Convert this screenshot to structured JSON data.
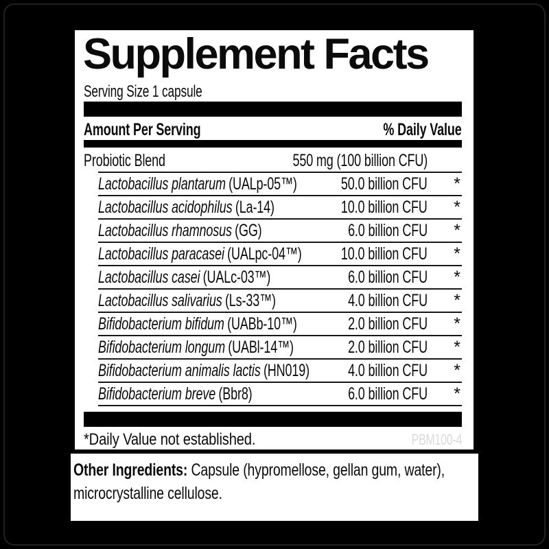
{
  "label": {
    "title": "Supplement Facts",
    "serving_size": "Serving Size 1 capsule",
    "header": {
      "amount_col": "Amount Per Serving",
      "dv_col": "% Daily Value"
    },
    "blend": {
      "name": "Probiotic Blend",
      "amount": "550 mg (100 billion CFU)",
      "dv": ""
    },
    "ingredients": [
      {
        "name": "Lactobacillus plantarum",
        "strain": "(UALp-05™)",
        "amount": "50.0 billion CFU",
        "dv": "*"
      },
      {
        "name": "Lactobacillus acidophilus",
        "strain": "(La-14)",
        "amount": "10.0 billion CFU",
        "dv": "*"
      },
      {
        "name": "Lactobacillus rhamnosus",
        "strain": "(GG)",
        "amount": "6.0 billion CFU",
        "dv": "*"
      },
      {
        "name": "Lactobacillus paracasei",
        "strain": "(UALpc-04™)",
        "amount": "10.0 billion CFU",
        "dv": "*"
      },
      {
        "name": "Lactobacillus casei",
        "strain": "(UALc-03™)",
        "amount": "6.0 billion CFU",
        "dv": "*"
      },
      {
        "name": "Lactobacillus salivarius",
        "strain": "(Ls-33™)",
        "amount": "4.0 billion CFU",
        "dv": "*"
      },
      {
        "name": "Bifidobacterium bifidum",
        "strain": "(UABb-10™)",
        "amount": "2.0 billion CFU",
        "dv": "*"
      },
      {
        "name": "Bifidobacterium longum",
        "strain": "(UABl-14™)",
        "amount": "2.0 billion CFU",
        "dv": "*"
      },
      {
        "name": "Bifidobacterium animalis lactis",
        "strain": "(HN019)",
        "amount": "4.0 billion CFU",
        "dv": "*"
      },
      {
        "name": "Bifidobacterium breve",
        "strain": "(Bbr8)",
        "amount": "6.0 billion CFU",
        "dv": "*"
      }
    ],
    "footnote": "*Daily Value not established.",
    "product_code": "PBM100-4",
    "other_ingredients": {
      "label": "Other Ingredients:",
      "line1": "Capsule (hypromellose, gellan gum, water),",
      "line2": "microcrystalline cellulose."
    },
    "colors": {
      "text": "#0b0b0b",
      "panel_bg": "#ffffff",
      "bar": "#000000",
      "product_code_gray": "#d9d9d9"
    }
  }
}
